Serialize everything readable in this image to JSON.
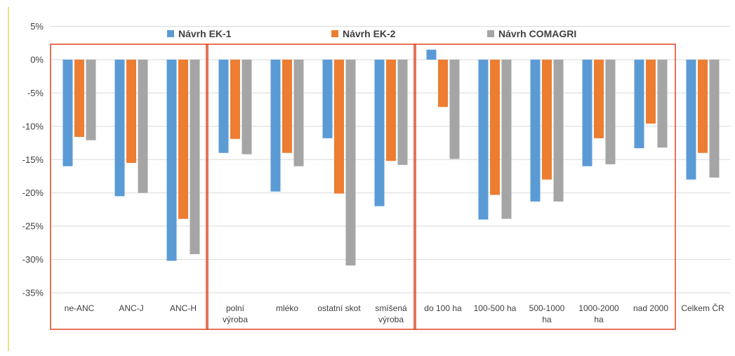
{
  "chart_data": {
    "type": "bar",
    "categories": [
      [
        "ne-ANC"
      ],
      [
        "ANC-J"
      ],
      [
        "ANC-H"
      ],
      [
        "polní",
        "výroba"
      ],
      [
        "mléko"
      ],
      [
        "ostatní skot"
      ],
      [
        "smíšená",
        "výroba"
      ],
      [
        "do 100 ha"
      ],
      [
        "100-500 ha"
      ],
      [
        "500-1000",
        "ha"
      ],
      [
        "1000-2000",
        "ha"
      ],
      [
        "nad 2000"
      ],
      [
        "Celkem ČR"
      ]
    ],
    "series": [
      {
        "name": "Návrh EK-1",
        "color": "#5b9bd5",
        "values": [
          -16,
          -20.5,
          -30.2,
          -14,
          -19.8,
          -11.8,
          -22,
          1.5,
          -24,
          -21.3,
          -16,
          -13.3,
          -18
        ]
      },
      {
        "name": "Návrh EK-2",
        "color": "#ed7d31",
        "values": [
          -11.6,
          -15.5,
          -23.9,
          -11.9,
          -14,
          -20.1,
          -15.2,
          -7.1,
          -20.3,
          -18,
          -11.8,
          -9.6,
          -14
        ]
      },
      {
        "name": "Návrh COMAGRI",
        "color": "#a5a5a5",
        "values": [
          -12.1,
          -20,
          -29.2,
          -14.2,
          -16,
          -30.9,
          -15.8,
          -14.9,
          -23.9,
          -21.3,
          -15.7,
          -13.2,
          -17.7
        ]
      }
    ],
    "yticks": [
      {
        "value": 5,
        "label": "5%"
      },
      {
        "value": 0,
        "label": "0%"
      },
      {
        "value": -5,
        "label": "-5%"
      },
      {
        "value": -10,
        "label": "-10%"
      },
      {
        "value": -15,
        "label": "-15%"
      },
      {
        "value": -20,
        "label": "-20%"
      },
      {
        "value": -25,
        "label": "-25%"
      },
      {
        "value": -30,
        "label": "-30%"
      },
      {
        "value": -35,
        "label": "-35%"
      }
    ],
    "ylim": [
      -35,
      5
    ],
    "grid": true,
    "legend_position": "top-center",
    "group_boxes": [
      [
        0,
        2
      ],
      [
        3,
        6
      ],
      [
        7,
        11
      ]
    ],
    "group_box_color": "#e0502e",
    "title": "",
    "xlabel": "",
    "ylabel": ""
  }
}
